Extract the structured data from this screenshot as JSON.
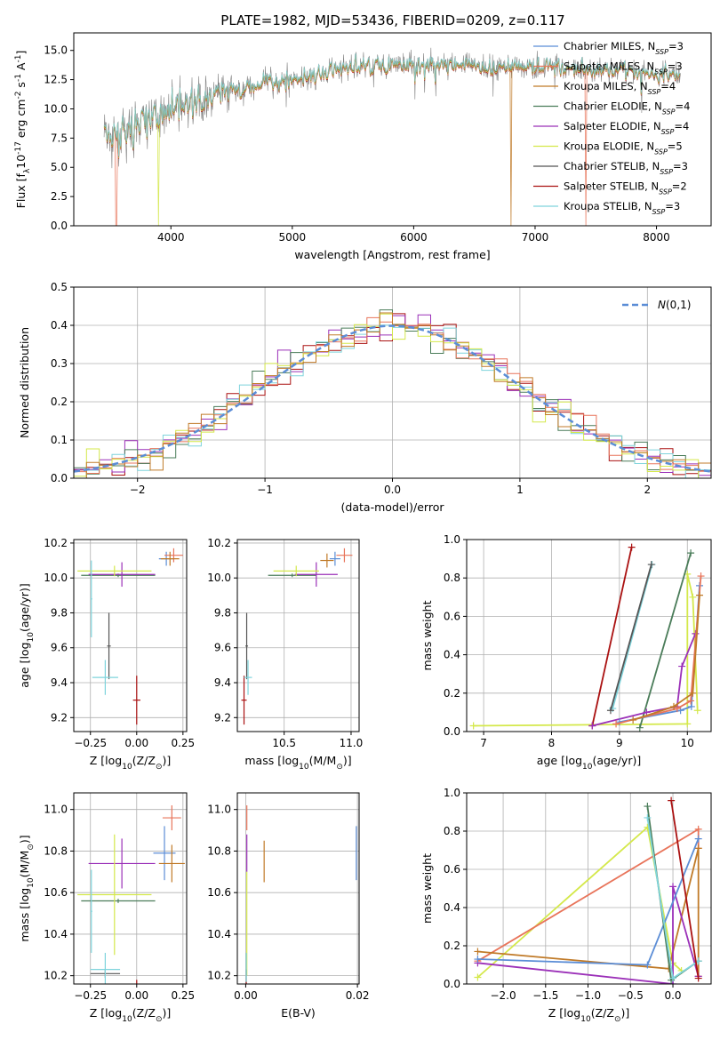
{
  "colors": {
    "Chabrier MILES": "#5b8dd6",
    "Salpeter MILES": "#e8745a",
    "Kroupa MILES": "#c07a28",
    "Chabrier ELODIE": "#4a7c59",
    "Salpeter ELODIE": "#9b30b8",
    "Kroupa ELODIE": "#d4e84a",
    "Chabrier STELIB": "#555555",
    "Salpeter STELIB": "#aa1111",
    "Kroupa STELIB": "#7fd4dc",
    "normal": "#5b8dd6"
  },
  "chart_data": [
    {
      "id": "spectrum",
      "type": "line",
      "title": "PLATE=1982, MJD=53436, FIBERID=0209, z=0.117",
      "xlabel": "wavelength [Angstrom, rest frame]",
      "ylabel": "Flux [f$_\\lambda$10$^{-17}$ erg cm$^{-2}$ s$^{-1}$ A$^{-1}$]",
      "xlim": [
        3200,
        8450
      ],
      "ylim": [
        0,
        16.5
      ],
      "xticks": [
        4000,
        5000,
        6000,
        7000,
        8000
      ],
      "yticks": [
        0.0,
        2.5,
        5.0,
        7.5,
        10.0,
        12.5,
        15.0
      ],
      "grid": false,
      "legend_position": "top-right",
      "legend": [
        {
          "model": "Chabrier MILES",
          "n": "3"
        },
        {
          "model": "Salpeter MILES",
          "n": "3"
        },
        {
          "model": "Kroupa MILES",
          "n": "4"
        },
        {
          "model": "Chabrier ELODIE",
          "n": "4"
        },
        {
          "model": "Salpeter ELODIE",
          "n": "4"
        },
        {
          "model": "Kroupa ELODIE",
          "n": "5"
        },
        {
          "model": "Chabrier STELIB",
          "n": "3"
        },
        {
          "model": "Salpeter STELIB",
          "n": "2"
        },
        {
          "model": "Kroupa STELIB",
          "n": "3"
        }
      ],
      "continuum": [
        [
          3450,
          8.0
        ],
        [
          3550,
          7.5
        ],
        [
          3700,
          8.5
        ],
        [
          3850,
          9.5
        ],
        [
          4000,
          10.0
        ],
        [
          4300,
          10.8
        ],
        [
          4500,
          11.5
        ],
        [
          4800,
          12.3
        ],
        [
          5000,
          12.5
        ],
        [
          5300,
          13.2
        ],
        [
          5600,
          13.8
        ],
        [
          5900,
          13.7
        ],
        [
          6200,
          13.9
        ],
        [
          6500,
          13.6
        ],
        [
          6800,
          13.6
        ],
        [
          7000,
          13.7
        ],
        [
          7300,
          13.5
        ],
        [
          7600,
          13.3
        ],
        [
          7900,
          13.1
        ],
        [
          8200,
          13.0
        ]
      ],
      "model_drops": [
        {
          "model": "Salpeter MILES",
          "x": 3550,
          "to": 0
        },
        {
          "model": "Kroupa ELODIE",
          "x": 3900,
          "to": 0
        },
        {
          "model": "Kroupa MILES",
          "x": 6800,
          "to": 0
        },
        {
          "model": "Salpeter MILES",
          "x": 7420,
          "to": 0
        }
      ]
    },
    {
      "id": "residuals",
      "type": "step",
      "xlabel": "(data-model)/error",
      "ylabel": "Normed distribution",
      "xlim": [
        -2.5,
        2.5
      ],
      "ylim": [
        0,
        0.5
      ],
      "xticks": [
        -2,
        -1,
        0,
        1,
        2
      ],
      "yticks": [
        0.0,
        0.1,
        0.2,
        0.3,
        0.4,
        0.5
      ],
      "grid": true,
      "legend_position": "top-right",
      "reference": {
        "label": "$\\mathcal{N}(0,1)$",
        "mu": 0,
        "sigma": 1
      },
      "bin_width": 0.1
    },
    {
      "id": "age_vs_Z",
      "type": "errorbar",
      "xlabel": "Z [log$_{10}$(Z/Z$_\\odot$)]",
      "ylabel": "age  [log$_{10}$(age/yr)]",
      "xlim": [
        -0.34,
        0.27
      ],
      "ylim": [
        9.12,
        10.22
      ],
      "xticks": [
        -0.25,
        0.0,
        0.25
      ],
      "yticks": [
        9.2,
        9.4,
        9.6,
        9.8,
        10.0,
        10.2
      ],
      "grid": true,
      "points": [
        {
          "model": "Chabrier MILES",
          "x": 0.16,
          "xerr": 0.04,
          "y": 10.11,
          "yerr": 0.04
        },
        {
          "model": "Salpeter MILES",
          "x": 0.2,
          "xerr": 0.05,
          "y": 10.13,
          "yerr": 0.04
        },
        {
          "model": "Kroupa MILES",
          "x": 0.18,
          "xerr": 0.05,
          "y": 10.11,
          "yerr": 0.04
        },
        {
          "model": "Chabrier ELODIE",
          "x": -0.1,
          "xerr": 0.2,
          "y": 10.015,
          "yerr": 0.01
        },
        {
          "model": "Salpeter ELODIE",
          "x": -0.08,
          "xerr": 0.18,
          "y": 10.02,
          "yerr": 0.07
        },
        {
          "model": "Kroupa ELODIE",
          "x": -0.12,
          "xerr": 0.2,
          "y": 10.04,
          "yerr": 0.03
        },
        {
          "model": "Chabrier STELIB",
          "x": -0.15,
          "xerr": 0.01,
          "y": 9.61,
          "yerr": 0.19
        },
        {
          "model": "Salpeter STELIB",
          "x": 0.0,
          "xerr": 0.02,
          "y": 9.3,
          "yerr": 0.14
        },
        {
          "model": "Kroupa STELIB",
          "x": -0.17,
          "xerr": 0.07,
          "y": 9.43,
          "yerr": 0.1
        },
        {
          "model": "Kroupa STELIB",
          "x": -0.245,
          "xerr": 0.005,
          "y": 9.88,
          "yerr": 0.22
        }
      ]
    },
    {
      "id": "age_vs_mass",
      "type": "errorbar",
      "xlabel": "mass [log$_{10}$(M/M$_\\odot$)]",
      "ylabel": "",
      "xlim": [
        10.15,
        11.06
      ],
      "ylim": [
        9.12,
        10.22
      ],
      "xticks": [
        10.5,
        11.0
      ],
      "yticks": [
        9.2,
        9.4,
        9.6,
        9.8,
        10.0,
        10.2
      ],
      "grid": true,
      "points": [
        {
          "model": "Chabrier MILES",
          "x": 10.88,
          "xerr": 0.04,
          "y": 10.11,
          "yerr": 0.04
        },
        {
          "model": "Salpeter MILES",
          "x": 10.95,
          "xerr": 0.06,
          "y": 10.13,
          "yerr": 0.04
        },
        {
          "model": "Kroupa MILES",
          "x": 10.82,
          "xerr": 0.05,
          "y": 10.1,
          "yerr": 0.04
        },
        {
          "model": "Chabrier ELODIE",
          "x": 10.56,
          "xerr": 0.18,
          "y": 10.015,
          "yerr": 0.01
        },
        {
          "model": "Salpeter ELODIE",
          "x": 10.74,
          "xerr": 0.16,
          "y": 10.02,
          "yerr": 0.07
        },
        {
          "model": "Kroupa ELODIE",
          "x": 10.59,
          "xerr": 0.17,
          "y": 10.04,
          "yerr": 0.03
        },
        {
          "model": "Chabrier STELIB",
          "x": 10.22,
          "xerr": 0.01,
          "y": 9.61,
          "yerr": 0.19
        },
        {
          "model": "Salpeter STELIB",
          "x": 10.2,
          "xerr": 0.02,
          "y": 9.3,
          "yerr": 0.14
        },
        {
          "model": "Kroupa STELIB",
          "x": 10.23,
          "xerr": 0.03,
          "y": 9.43,
          "yerr": 0.1
        }
      ]
    },
    {
      "id": "weight_vs_age",
      "type": "line",
      "xlabel": "age  [log$_{10}$(age/yr)]",
      "ylabel": "mass weight",
      "xlim": [
        6.75,
        10.35
      ],
      "ylim": [
        0,
        1.0
      ],
      "xticks": [
        7,
        8,
        9,
        10
      ],
      "yticks": [
        0.0,
        0.2,
        0.4,
        0.6,
        0.8,
        1.0
      ],
      "grid": true,
      "series": [
        {
          "model": "Kroupa ELODIE",
          "x": [
            6.85,
            10.0,
            10.0,
            10.08,
            10.15
          ],
          "y": [
            0.03,
            0.04,
            0.82,
            0.7,
            0.11
          ]
        },
        {
          "model": "Chabrier ELODIE",
          "x": [
            9.3,
            10.05
          ],
          "y": [
            0.02,
            0.93
          ]
        },
        {
          "model": "Salpeter STELIB",
          "x": [
            8.6,
            9.18
          ],
          "y": [
            0.03,
            0.96
          ]
        },
        {
          "model": "Kroupa STELIB",
          "x": [
            8.9,
            9.48
          ],
          "y": [
            0.12,
            0.87
          ]
        },
        {
          "model": "Chabrier STELIB",
          "x": [
            8.87,
            9.47
          ],
          "y": [
            0.11,
            0.87
          ]
        },
        {
          "model": "Salpeter ELODIE",
          "x": [
            8.6,
            9.4,
            9.85,
            9.92,
            10.12
          ],
          "y": [
            0.03,
            0.1,
            0.13,
            0.34,
            0.51
          ]
        },
        {
          "model": "Chabrier MILES",
          "x": [
            9.0,
            9.9,
            10.06,
            10.18
          ],
          "y": [
            0.05,
            0.11,
            0.13,
            0.76
          ]
        },
        {
          "model": "Salpeter MILES",
          "x": [
            8.95,
            9.85,
            10.05,
            10.2
          ],
          "y": [
            0.04,
            0.12,
            0.16,
            0.81
          ]
        },
        {
          "model": "Kroupa MILES",
          "x": [
            9.2,
            9.8,
            10.08,
            10.18
          ],
          "y": [
            0.06,
            0.13,
            0.2,
            0.71
          ]
        }
      ]
    },
    {
      "id": "mass_vs_Z",
      "type": "errorbar",
      "xlabel": "Z [log$_{10}$(Z/Z$_\\odot$)]",
      "ylabel": "mass [log$_{10}$(M/M$_\\odot$)]",
      "xlim": [
        -0.34,
        0.27
      ],
      "ylim": [
        10.16,
        11.08
      ],
      "xticks": [
        -0.25,
        0.0,
        0.25
      ],
      "yticks": [
        10.2,
        10.4,
        10.6,
        10.8,
        11.0
      ],
      "grid": true,
      "points": [
        {
          "model": "Chabrier MILES",
          "x": 0.15,
          "xerr": 0.06,
          "y": 10.79,
          "yerr": 0.13
        },
        {
          "model": "Salpeter MILES",
          "x": 0.19,
          "xerr": 0.05,
          "y": 10.96,
          "yerr": 0.06
        },
        {
          "model": "Kroupa MILES",
          "x": 0.19,
          "xerr": 0.07,
          "y": 10.74,
          "yerr": 0.09
        },
        {
          "model": "Chabrier ELODIE",
          "x": -0.1,
          "xerr": 0.2,
          "y": 10.56,
          "yerr": 0.01
        },
        {
          "model": "Salpeter ELODIE",
          "x": -0.08,
          "xerr": 0.18,
          "y": 10.74,
          "yerr": 0.12
        },
        {
          "model": "Kroupa ELODIE",
          "x": -0.12,
          "xerr": 0.2,
          "y": 10.59,
          "yerr": 0.29
        },
        {
          "model": "Chabrier STELIB",
          "x": -0.17,
          "xerr": 0.08,
          "y": 10.21,
          "yerr": 0.02
        },
        {
          "model": "Salpeter STELIB",
          "x": 0.0,
          "xerr": 0.02,
          "y": 10.14,
          "yerr": 0.04
        },
        {
          "model": "Kroupa STELIB",
          "x": -0.17,
          "xerr": 0.08,
          "y": 10.23,
          "yerr": 0.08
        },
        {
          "model": "Kroupa STELIB",
          "x": -0.245,
          "xerr": 0.005,
          "y": 10.51,
          "yerr": 0.2
        }
      ]
    },
    {
      "id": "mass_vs_EBV",
      "type": "errorbar",
      "xlabel": "E(B-V)",
      "ylabel": "",
      "xlim": [
        -0.0015,
        0.0203
      ],
      "ylim": [
        10.16,
        11.08
      ],
      "xticks": [
        0.0,
        0.02
      ],
      "yticks": [
        10.2,
        10.4,
        10.6,
        10.8,
        11.0
      ],
      "grid": true,
      "points": [
        {
          "model": "Chabrier MILES",
          "x": 0.0198,
          "xerr": 0,
          "y": 10.79,
          "yerr": 0.13
        },
        {
          "model": "Salpeter MILES",
          "x": 0.0002,
          "xerr": 0,
          "y": 10.96,
          "yerr": 0.06
        },
        {
          "model": "Kroupa MILES",
          "x": 0.0033,
          "xerr": 0,
          "y": 10.75,
          "yerr": 0.1
        },
        {
          "model": "Salpeter ELODIE",
          "x": 0.0002,
          "xerr": 0,
          "y": 10.79,
          "yerr": 0.09
        },
        {
          "model": "Kroupa ELODIE",
          "x": 0.0002,
          "xerr": 0,
          "y": 10.45,
          "yerr": 0.25
        },
        {
          "model": "Chabrier STELIB",
          "x": 0.0001,
          "xerr": 0,
          "y": 10.21,
          "yerr": 0.02
        },
        {
          "model": "Salpeter STELIB",
          "x": 0.0001,
          "xerr": 0,
          "y": 10.16,
          "yerr": 0.03
        },
        {
          "model": "Kroupa STELIB",
          "x": 0.0001,
          "xerr": 0,
          "y": 10.24,
          "yerr": 0.07
        }
      ]
    },
    {
      "id": "weight_vs_Z",
      "type": "line",
      "xlabel": "Z [log$_{10}$(Z/Z$_\\odot$)]",
      "ylabel": "mass weight",
      "xlim": [
        -2.43,
        0.45
      ],
      "ylim": [
        0,
        1.0
      ],
      "xticks": [
        -2.0,
        -1.5,
        -1.0,
        -0.5,
        0.0
      ],
      "yticks": [
        0.0,
        0.2,
        0.4,
        0.6,
        0.8,
        1.0
      ],
      "grid": true,
      "series": [
        {
          "model": "Kroupa ELODIE",
          "x": [
            -2.3,
            -0.3,
            0.0,
            0.1
          ],
          "y": [
            0.035,
            0.82,
            0.11,
            0.07
          ]
        },
        {
          "model": "Salpeter MILES",
          "x": [
            -2.3,
            0.3,
            0.3
          ],
          "y": [
            0.12,
            0.81,
            0.71
          ]
        },
        {
          "model": "Kroupa MILES",
          "x": [
            -2.3,
            -0.05,
            0.3,
            0.3
          ],
          "y": [
            0.17,
            0.08,
            0.71,
            0.04
          ]
        },
        {
          "model": "Salpeter ELODIE",
          "x": [
            -2.3,
            0.0,
            0.0,
            0.3
          ],
          "y": [
            0.11,
            0.0,
            0.51,
            0.04
          ]
        },
        {
          "model": "Chabrier MILES",
          "x": [
            -2.3,
            -0.3,
            0.3
          ],
          "y": [
            0.13,
            0.1,
            0.76
          ]
        },
        {
          "model": "Chabrier ELODIE",
          "x": [
            -0.3,
            -0.02,
            0.3
          ],
          "y": [
            0.93,
            0.02,
            0.12
          ]
        },
        {
          "model": "Kroupa STELIB",
          "x": [
            -0.3,
            0.0,
            0.3
          ],
          "y": [
            0.87,
            0.03,
            0.12
          ]
        },
        {
          "model": "Salpeter STELIB",
          "x": [
            -0.02,
            0.3
          ],
          "y": [
            0.96,
            0.03
          ]
        }
      ]
    }
  ]
}
